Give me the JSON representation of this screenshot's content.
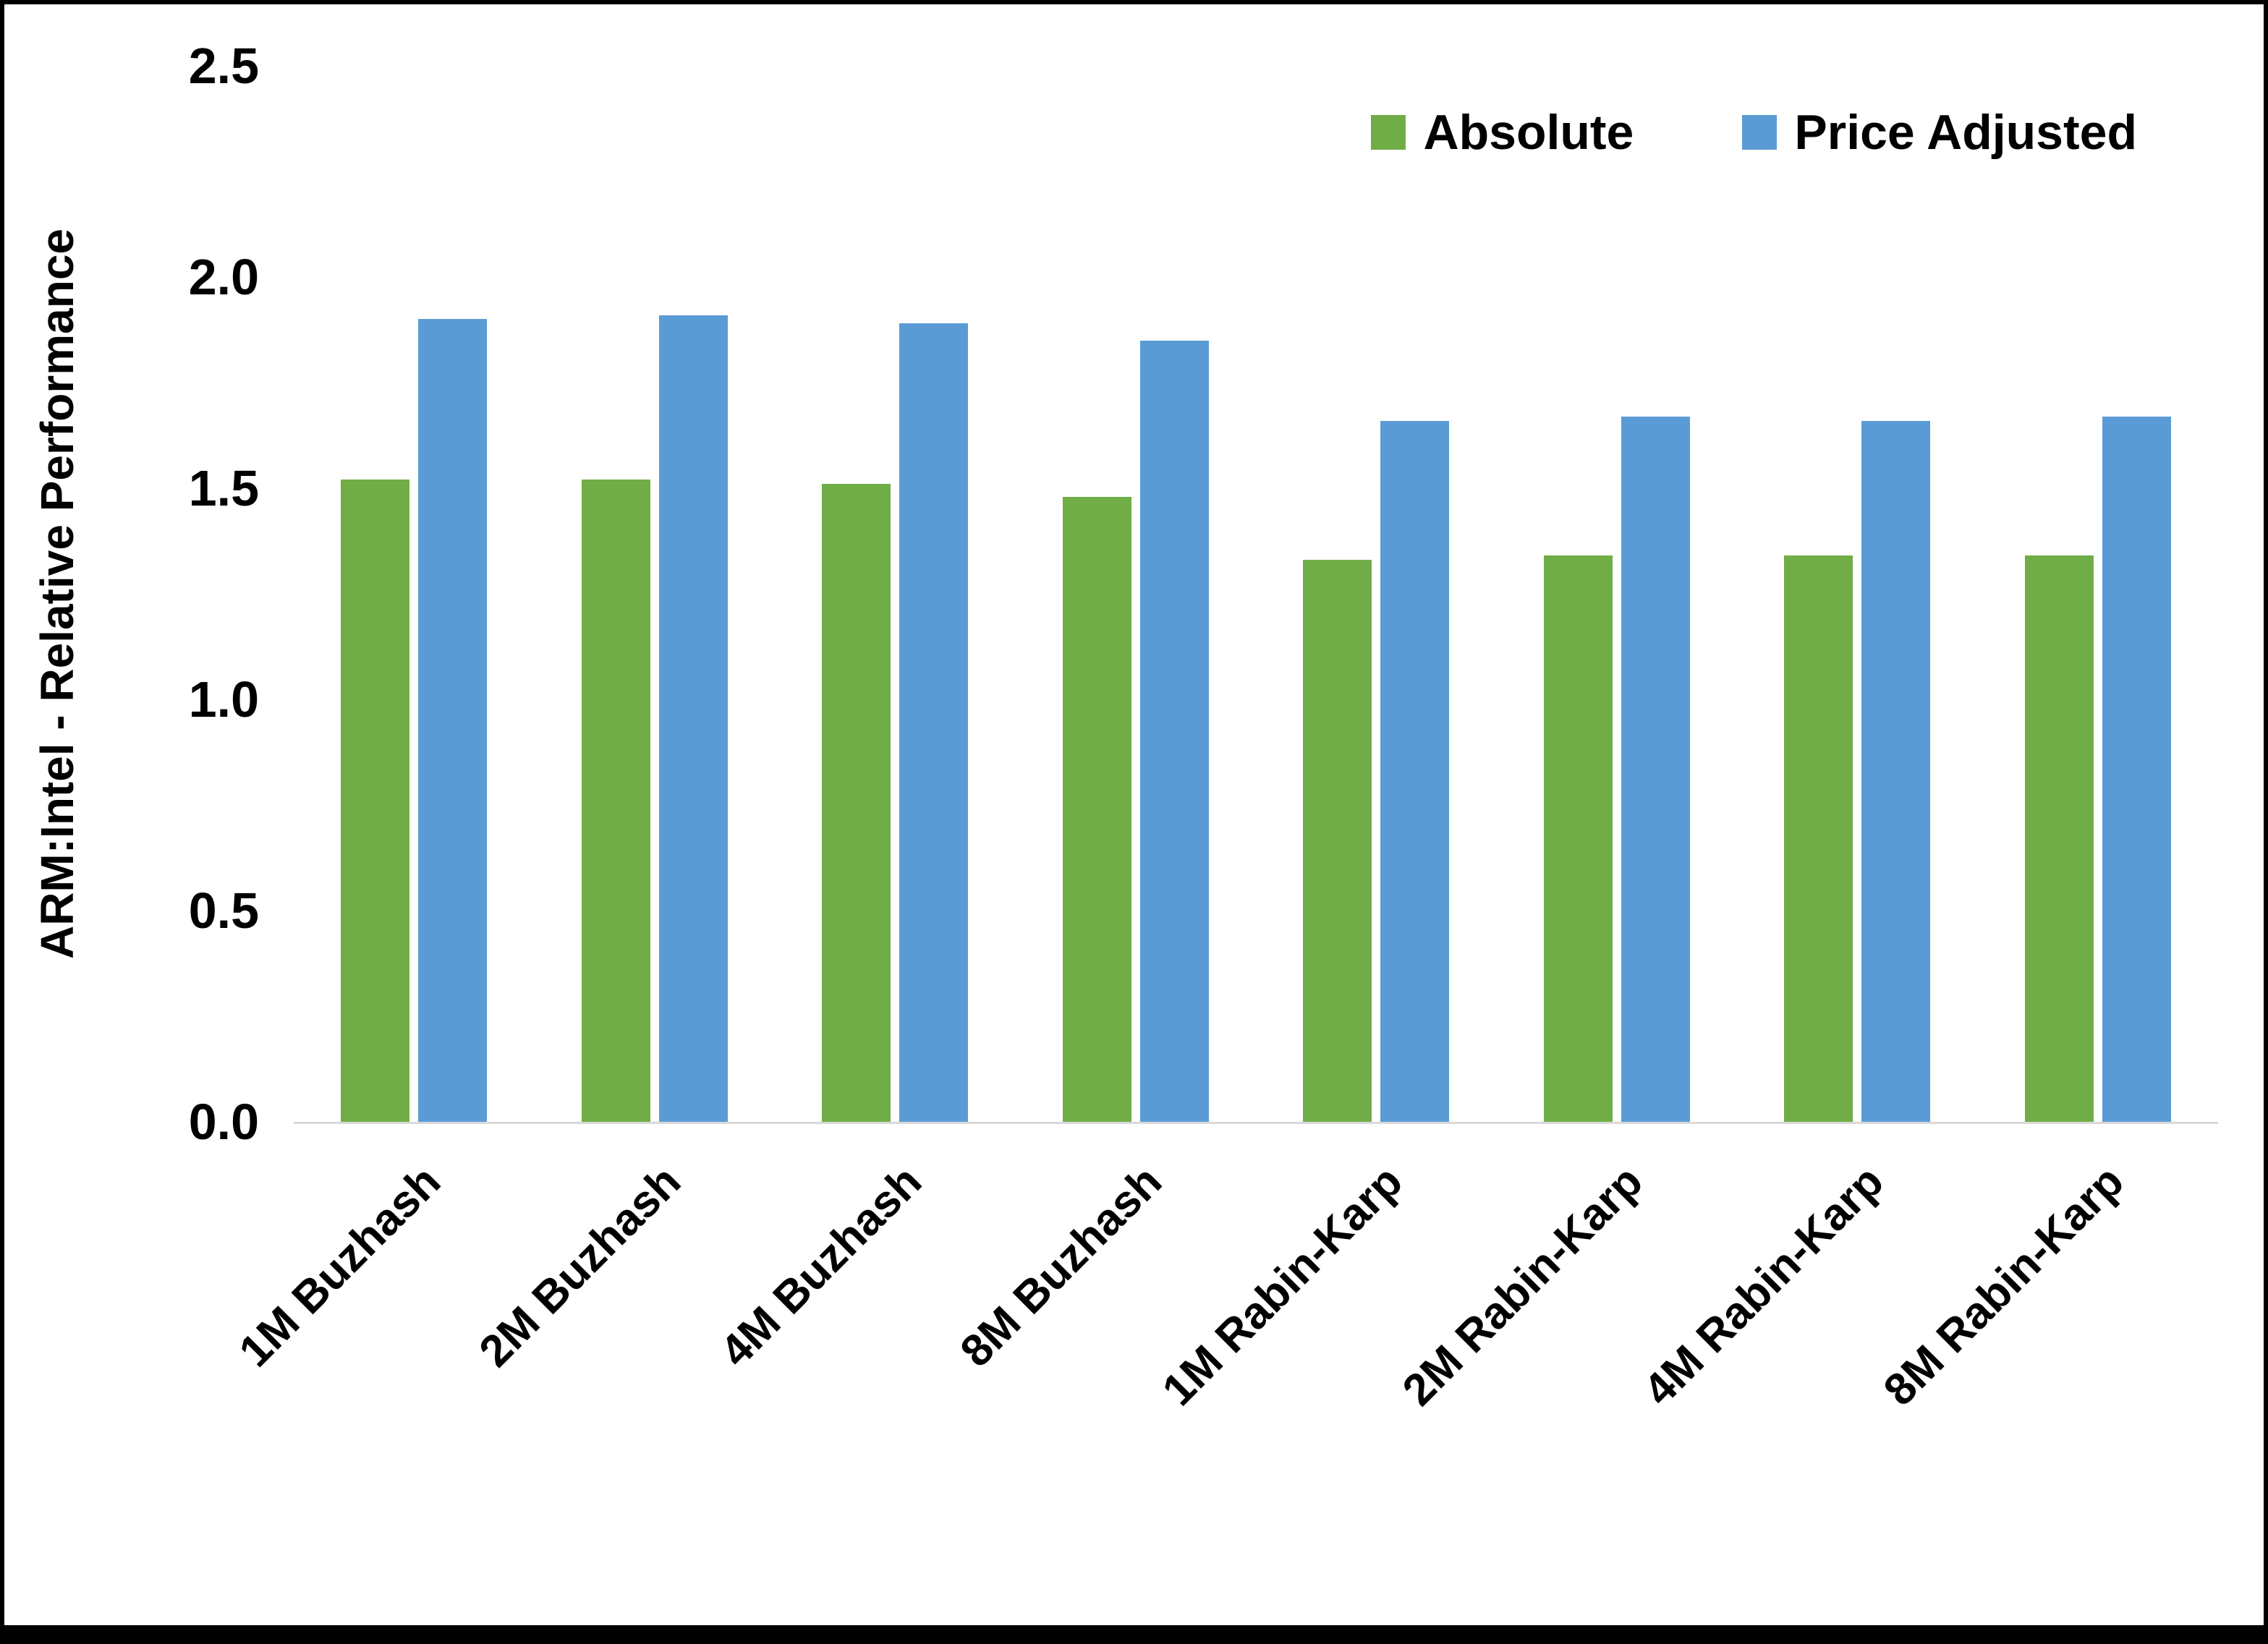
{
  "chart_data": {
    "type": "bar",
    "title": "",
    "xlabel": "",
    "ylabel": "ARM:Intel - Relative Performance",
    "ylim": [
      0,
      2.5
    ],
    "ytick_labels": [
      "0.0",
      "0.5",
      "1.0",
      "1.5",
      "2.0",
      "2.5"
    ],
    "grid": false,
    "legend_position": "top-right",
    "categories": [
      "1M Buzhash",
      "2M Buzhash",
      "4M Buzhash",
      "8M Buzhash",
      "1M Rabin-Karp",
      "2M Rabin-Karp",
      "4M Rabin-Karp",
      "8M Rabin-Karp"
    ],
    "series": [
      {
        "name": "Absolute",
        "color": "#70AD47",
        "values": [
          1.52,
          1.52,
          1.51,
          1.48,
          1.33,
          1.34,
          1.34,
          1.34
        ]
      },
      {
        "name": "Price Adjusted",
        "color": "#5B9BD5",
        "values": [
          1.9,
          1.91,
          1.89,
          1.85,
          1.66,
          1.67,
          1.66,
          1.67
        ]
      }
    ]
  },
  "colors": {
    "background": "#ffffff",
    "frame_border": "#000000",
    "axis_line": "#d9d9d9",
    "text": "#000000"
  }
}
